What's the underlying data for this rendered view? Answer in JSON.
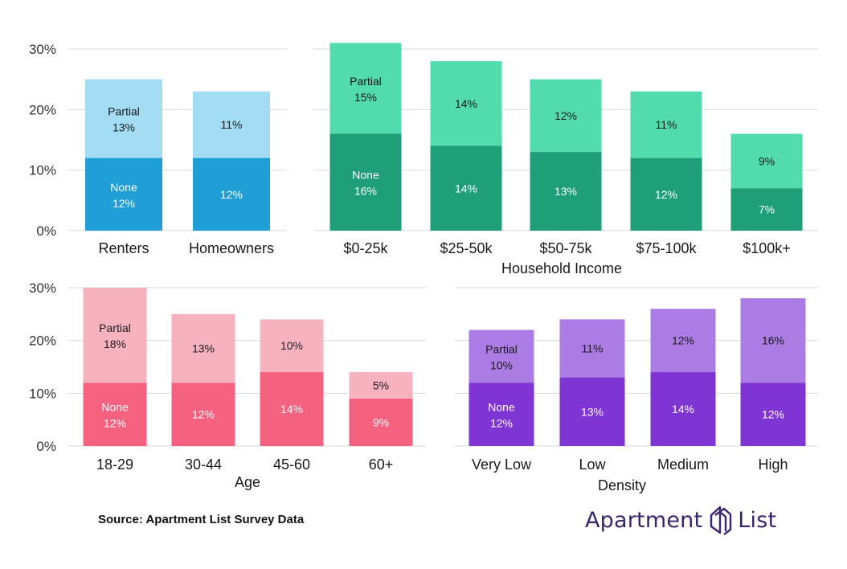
{
  "colors": {
    "blue_none": "#1f9fd6",
    "blue_partial": "#a3dcf3",
    "green_none": "#1e9f77",
    "green_partial": "#52dbac",
    "pink_none": "#f5627f",
    "pink_partial": "#f7b2bf",
    "purple_none": "#7f35d3",
    "purple_partial": "#aa7ce4",
    "logo": "#3a2470"
  },
  "source": "Source: Apartment List Survey Data",
  "logo": {
    "left_word": "Apartment",
    "right_word": "List",
    "icon": "apartment-list-logo-icon"
  },
  "chart_data": [
    {
      "type": "bar",
      "stacked": true,
      "panel": "tenure",
      "xlabel": "",
      "ylabel": "",
      "ylim": [
        0,
        30
      ],
      "yticks": [
        "0%",
        "10%",
        "20%",
        "30%"
      ],
      "categories": [
        "Renters",
        "Homeowners"
      ],
      "series": [
        {
          "name": "None",
          "values": [
            12,
            12
          ],
          "labels": [
            "12%",
            "12%"
          ]
        },
        {
          "name": "Partial",
          "values": [
            13,
            11
          ],
          "labels": [
            "13%",
            "11%"
          ]
        }
      ],
      "legend_in_first_bar": true,
      "grid": true,
      "palette": "blue"
    },
    {
      "type": "bar",
      "stacked": true,
      "panel": "income",
      "xlabel": "Household Income",
      "ylabel": "",
      "ylim": [
        0,
        30
      ],
      "yticks": [],
      "categories": [
        "$0-25k",
        "$25-50k",
        "$50-75k",
        "$75-100k",
        "$100k+"
      ],
      "series": [
        {
          "name": "None",
          "values": [
            16,
            14,
            13,
            12,
            7
          ],
          "labels": [
            "16%",
            "14%",
            "13%",
            "12%",
            "7%"
          ]
        },
        {
          "name": "Partial",
          "values": [
            15,
            14,
            12,
            11,
            9
          ],
          "labels": [
            "15%",
            "14%",
            "12%",
            "11%",
            "9%"
          ]
        }
      ],
      "legend_in_first_bar": true,
      "grid": true,
      "palette": "green"
    },
    {
      "type": "bar",
      "stacked": true,
      "panel": "age",
      "xlabel": "Age",
      "ylabel": "",
      "ylim": [
        0,
        30
      ],
      "yticks": [
        "0%",
        "10%",
        "20%",
        "30%"
      ],
      "categories": [
        "18-29",
        "30-44",
        "45-60",
        "60+"
      ],
      "series": [
        {
          "name": "None",
          "values": [
            12,
            12,
            14,
            9
          ],
          "labels": [
            "12%",
            "12%",
            "14%",
            "9%"
          ]
        },
        {
          "name": "Partial",
          "values": [
            18,
            13,
            10,
            5
          ],
          "labels": [
            "18%",
            "13%",
            "10%",
            "5%"
          ]
        }
      ],
      "legend_in_first_bar": true,
      "grid": true,
      "palette": "pink"
    },
    {
      "type": "bar",
      "stacked": true,
      "panel": "density",
      "xlabel": "Density",
      "ylabel": "",
      "ylim": [
        0,
        30
      ],
      "yticks": [],
      "categories": [
        "Very Low",
        "Low",
        "Medium",
        "High"
      ],
      "series": [
        {
          "name": "None",
          "values": [
            12,
            13,
            14,
            12
          ],
          "labels": [
            "12%",
            "13%",
            "14%",
            "12%"
          ]
        },
        {
          "name": "Partial",
          "values": [
            10,
            11,
            12,
            16
          ],
          "labels": [
            "10%",
            "11%",
            "12%",
            "16%"
          ]
        }
      ],
      "legend_in_first_bar": true,
      "grid": true,
      "palette": "purple"
    }
  ]
}
